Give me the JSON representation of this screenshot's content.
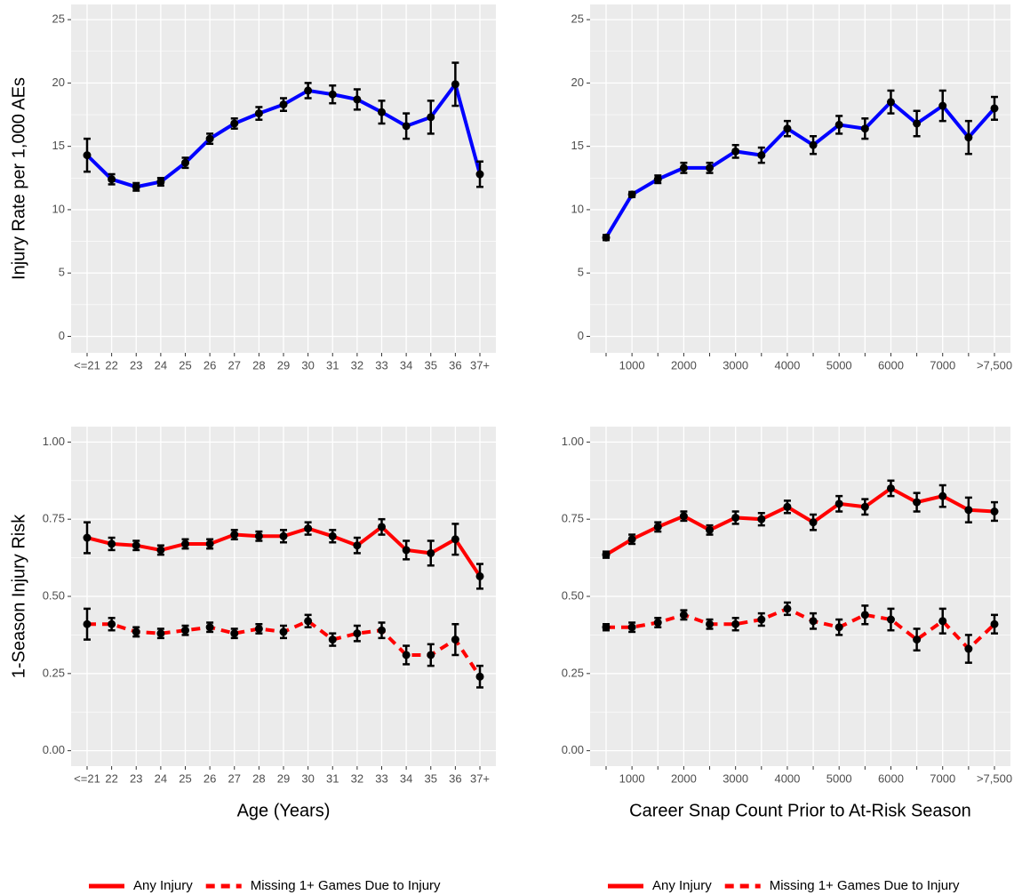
{
  "chart_data": [
    {
      "type": "line",
      "ylabel": "Injury Rate per 1,000 AEs",
      "categories": [
        "<=21",
        "22",
        "23",
        "24",
        "25",
        "26",
        "27",
        "28",
        "29",
        "30",
        "31",
        "32",
        "33",
        "34",
        "35",
        "36",
        "37+"
      ],
      "values": [
        14.3,
        12.4,
        11.8,
        12.2,
        13.7,
        15.6,
        16.8,
        17.6,
        18.3,
        19.4,
        19.1,
        18.7,
        17.7,
        16.6,
        17.3,
        19.9,
        12.8
      ],
      "errors": [
        1.3,
        0.4,
        0.3,
        0.3,
        0.4,
        0.4,
        0.4,
        0.5,
        0.5,
        0.6,
        0.7,
        0.8,
        0.9,
        1.0,
        1.3,
        1.7,
        1.0
      ],
      "color": "#0000ff",
      "ylim": [
        -1.3,
        26.2
      ],
      "yticks": [
        0,
        5,
        10,
        15,
        20,
        25
      ],
      "grid": true
    },
    {
      "type": "line",
      "categories": [
        null,
        "1000",
        null,
        "2000",
        null,
        "3000",
        null,
        "4000",
        null,
        "5000",
        null,
        "6000",
        null,
        "7000",
        null,
        ">7,500"
      ],
      "values": [
        7.8,
        11.2,
        12.4,
        13.3,
        13.3,
        14.6,
        14.3,
        16.4,
        15.1,
        16.7,
        16.4,
        18.5,
        16.8,
        18.2,
        15.7,
        18.0
      ],
      "errors": [
        0.2,
        0.2,
        0.3,
        0.4,
        0.4,
        0.5,
        0.6,
        0.6,
        0.7,
        0.7,
        0.8,
        0.9,
        1.0,
        1.2,
        1.3,
        0.9
      ],
      "color": "#0000ff",
      "ylim": [
        -1.3,
        26.2
      ],
      "yticks": [
        0,
        5,
        10,
        15,
        20,
        25
      ],
      "grid": true
    },
    {
      "type": "line",
      "ylabel": "1-Season Injury Risk",
      "xlabel": "Age (Years)",
      "categories": [
        "<=21",
        "22",
        "23",
        "24",
        "25",
        "26",
        "27",
        "28",
        "29",
        "30",
        "31",
        "32",
        "33",
        "34",
        "35",
        "36",
        "37+"
      ],
      "series": [
        {
          "name": "Any Injury",
          "color": "#ff0000",
          "dashed": false,
          "values": [
            0.69,
            0.67,
            0.665,
            0.65,
            0.67,
            0.67,
            0.7,
            0.695,
            0.695,
            0.72,
            0.695,
            0.665,
            0.725,
            0.65,
            0.64,
            0.685,
            0.565
          ],
          "errors": [
            0.05,
            0.02,
            0.015,
            0.015,
            0.015,
            0.015,
            0.015,
            0.015,
            0.02,
            0.02,
            0.02,
            0.025,
            0.025,
            0.03,
            0.04,
            0.05,
            0.04
          ]
        },
        {
          "name": "Missing 1+ Games Due to Injury",
          "color": "#ff0000",
          "dashed": true,
          "values": [
            0.41,
            0.41,
            0.385,
            0.38,
            0.39,
            0.4,
            0.38,
            0.395,
            0.385,
            0.42,
            0.36,
            0.38,
            0.39,
            0.31,
            0.31,
            0.36,
            0.24
          ],
          "errors": [
            0.05,
            0.02,
            0.015,
            0.015,
            0.015,
            0.015,
            0.015,
            0.015,
            0.02,
            0.02,
            0.02,
            0.025,
            0.025,
            0.03,
            0.035,
            0.05,
            0.035
          ]
        }
      ],
      "ylim": [
        -0.05,
        1.05
      ],
      "yticks": [
        {
          "value": 0,
          "label": "0.00"
        },
        {
          "value": 0.25,
          "label": "0.25"
        },
        {
          "value": 0.5,
          "label": "0.50"
        },
        {
          "value": 0.75,
          "label": "0.75"
        },
        {
          "value": 1,
          "label": "1.00"
        }
      ],
      "grid": true,
      "legend": "bottom"
    },
    {
      "type": "line",
      "xlabel": "Career Snap Count Prior to At-Risk Season",
      "categories": [
        null,
        "1000",
        null,
        "2000",
        null,
        "3000",
        null,
        "4000",
        null,
        "5000",
        null,
        "6000",
        null,
        "7000",
        null,
        ">7,500"
      ],
      "series": [
        {
          "name": "Any Injury",
          "color": "#ff0000",
          "dashed": false,
          "values": [
            0.635,
            0.685,
            0.725,
            0.76,
            0.715,
            0.755,
            0.75,
            0.79,
            0.74,
            0.8,
            0.79,
            0.85,
            0.805,
            0.825,
            0.78,
            0.775
          ],
          "errors": [
            0.01,
            0.015,
            0.015,
            0.015,
            0.015,
            0.02,
            0.02,
            0.02,
            0.025,
            0.025,
            0.025,
            0.025,
            0.03,
            0.035,
            0.04,
            0.03
          ]
        },
        {
          "name": "Missing 1+ Games Due to Injury",
          "color": "#ff0000",
          "dashed": true,
          "values": [
            0.4,
            0.4,
            0.415,
            0.44,
            0.41,
            0.41,
            0.425,
            0.46,
            0.42,
            0.4,
            0.44,
            0.425,
            0.36,
            0.42,
            0.33,
            0.41
          ],
          "errors": [
            0.01,
            0.015,
            0.015,
            0.015,
            0.015,
            0.02,
            0.02,
            0.02,
            0.025,
            0.025,
            0.03,
            0.035,
            0.035,
            0.04,
            0.045,
            0.03
          ]
        }
      ],
      "ylim": [
        -0.05,
        1.05
      ],
      "yticks": [
        {
          "value": 0,
          "label": "0.00"
        },
        {
          "value": 0.25,
          "label": "0.25"
        },
        {
          "value": 0.5,
          "label": "0.50"
        },
        {
          "value": 0.75,
          "label": "0.75"
        },
        {
          "value": 1,
          "label": "1.00"
        }
      ],
      "grid": true,
      "legend": "bottom"
    }
  ]
}
